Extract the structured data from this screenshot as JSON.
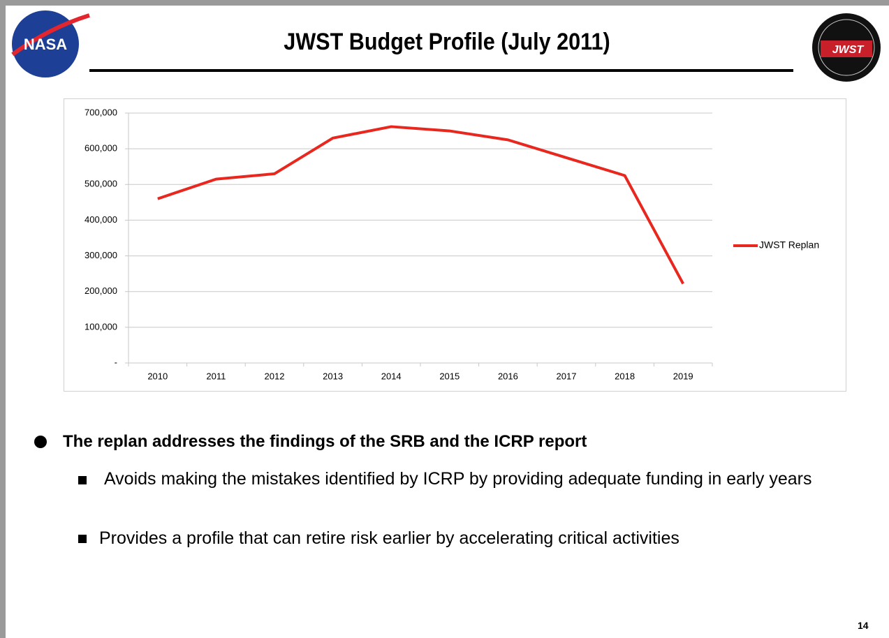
{
  "header": {
    "title": "JWST Budget Profile (July 2011)"
  },
  "chart_data": {
    "type": "line",
    "categories": [
      "2010",
      "2011",
      "2012",
      "2013",
      "2014",
      "2015",
      "2016",
      "2017",
      "2018",
      "2019"
    ],
    "series": [
      {
        "name": "JWST Replan",
        "color": "#e8281e",
        "values": [
          460000,
          515000,
          530000,
          630000,
          662000,
          650000,
          625000,
          575000,
          525000,
          222000
        ]
      }
    ],
    "ylim": [
      0,
      700000
    ],
    "yticks": [
      {
        "value": 0,
        "label": "-"
      },
      {
        "value": 100000,
        "label": "100,000"
      },
      {
        "value": 200000,
        "label": "200,000"
      },
      {
        "value": 300000,
        "label": "300,000"
      },
      {
        "value": 400000,
        "label": "400,000"
      },
      {
        "value": 500000,
        "label": "500,000"
      },
      {
        "value": 600000,
        "label": "600,000"
      },
      {
        "value": 700000,
        "label": "700,000"
      }
    ],
    "grid": true,
    "legend": "right"
  },
  "bullets": [
    {
      "text": "The replan addresses the findings of the SRB and the ICRP report",
      "items": [
        " Avoids making the mistakes identified by ICRP by providing adequate funding in early years",
        "Provides a profile that can retire risk earlier by accelerating critical activities"
      ]
    }
  ],
  "page_number": "14"
}
